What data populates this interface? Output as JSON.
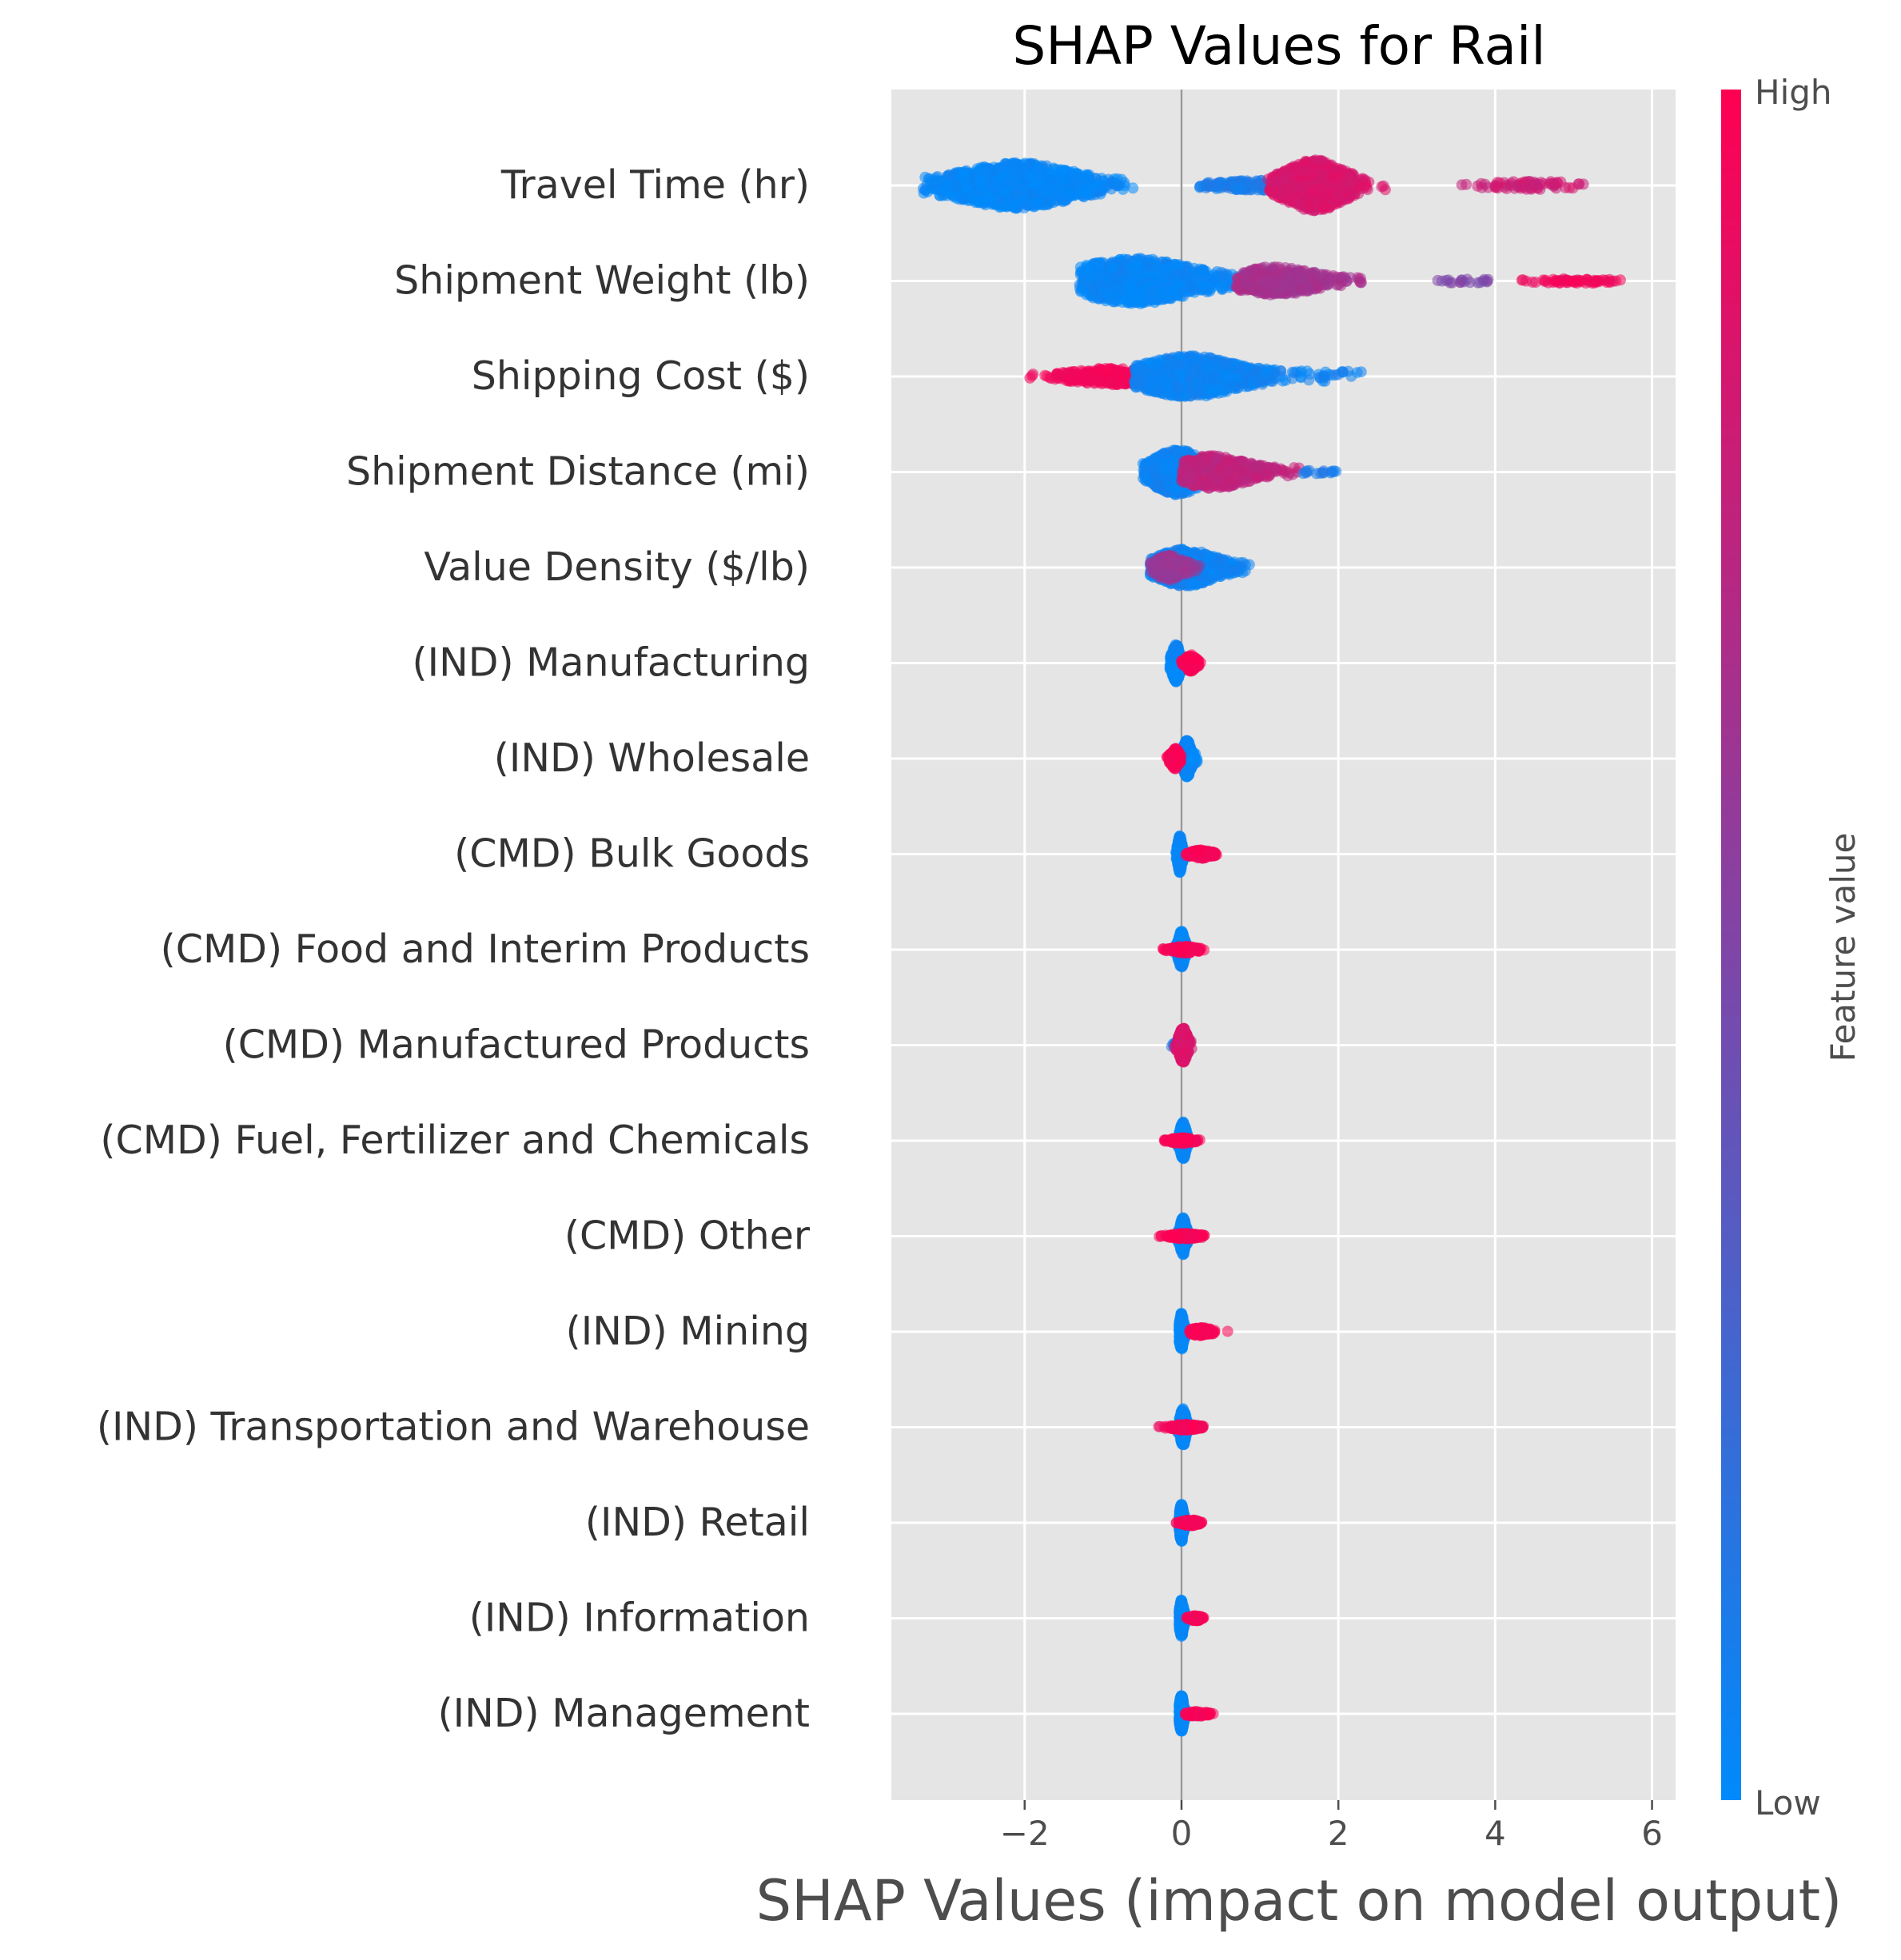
{
  "chart_data": {
    "type": "scatter",
    "subtype": "shap-beeswarm",
    "title": "SHAP Values for Rail",
    "xlabel": "SHAP Values (impact on model output)",
    "ylabel": "",
    "xlim": [
      -3.7,
      6.3
    ],
    "xticks": [
      -2,
      0,
      2,
      4,
      6
    ],
    "xtick_labels": [
      "−2",
      "0",
      "2",
      "4",
      "6"
    ],
    "grid": true,
    "background": "#e5e5e5",
    "colorbar": {
      "label": "Feature value",
      "high_label": "High",
      "low_label": "Low",
      "low_color": "#008afb",
      "high_color": "#ff0052"
    },
    "features": [
      {
        "name": "Travel Time (hr)",
        "segments": [
          {
            "min": -3.3,
            "max": -0.6,
            "center": -2.1,
            "spread": 0.6,
            "width": 0.55,
            "color": 0.02,
            "count": 900
          },
          {
            "min": 0.2,
            "max": 1.5,
            "center": 1.0,
            "spread": 0.5,
            "width": 0.12,
            "color": 0.1,
            "count": 150
          },
          {
            "min": 1.1,
            "max": 2.6,
            "center": 1.7,
            "spread": 0.3,
            "width": 0.62,
            "color": 0.85,
            "count": 700
          },
          {
            "min": 3.5,
            "max": 5.2,
            "center": 4.5,
            "spread": 0.5,
            "width": 0.1,
            "color": 0.8,
            "count": 70
          }
        ]
      },
      {
        "name": "Shipment Weight (lb)",
        "segments": [
          {
            "min": -1.3,
            "max": 1.2,
            "center": -0.6,
            "spread": 0.6,
            "width": 0.55,
            "color": 0.03,
            "count": 700
          },
          {
            "min": 0.7,
            "max": 2.4,
            "center": 1.2,
            "spread": 0.4,
            "width": 0.35,
            "color": 0.65,
            "count": 350
          },
          {
            "min": 3.2,
            "max": 4.0,
            "center": 3.6,
            "spread": 0.3,
            "width": 0.05,
            "color": 0.5,
            "count": 20
          },
          {
            "min": 4.3,
            "max": 5.7,
            "center": 5.0,
            "spread": 0.4,
            "width": 0.06,
            "color": 0.95,
            "count": 60
          }
        ]
      },
      {
        "name": "Shipping Cost ($)",
        "segments": [
          {
            "min": -2.0,
            "max": -0.4,
            "center": -0.9,
            "spread": 0.4,
            "width": 0.2,
            "color": 0.95,
            "count": 250
          },
          {
            "min": -0.6,
            "max": 2.3,
            "center": 0.1,
            "spread": 0.5,
            "width": 0.5,
            "color": 0.05,
            "count": 800
          }
        ]
      },
      {
        "name": "Shipment Distance (mi)",
        "segments": [
          {
            "min": -0.5,
            "max": 0.5,
            "center": -0.05,
            "spread": 0.25,
            "width": 0.55,
            "color": 0.05,
            "count": 600
          },
          {
            "min": 0.0,
            "max": 1.5,
            "center": 0.4,
            "spread": 0.35,
            "width": 0.4,
            "color": 0.75,
            "count": 450
          },
          {
            "min": 1.5,
            "max": 2.0,
            "center": 1.7,
            "spread": 0.2,
            "width": 0.05,
            "color": 0.1,
            "count": 15
          }
        ]
      },
      {
        "name": "Value Density ($/lb)",
        "segments": [
          {
            "min": -0.4,
            "max": 0.9,
            "center": 0.05,
            "spread": 0.3,
            "width": 0.45,
            "color": 0.05,
            "count": 600
          },
          {
            "min": -0.4,
            "max": 0.3,
            "center": -0.15,
            "spread": 0.15,
            "width": 0.3,
            "color": 0.6,
            "count": 200
          }
        ]
      },
      {
        "name": "(IND) Manufacturing",
        "segments": [
          {
            "min": -0.15,
            "max": 0.0,
            "center": -0.07,
            "spread": 0.04,
            "width": 0.45,
            "color": 0.02,
            "count": 350
          },
          {
            "min": 0.0,
            "max": 0.25,
            "center": 0.12,
            "spread": 0.05,
            "width": 0.2,
            "color": 0.97,
            "count": 200
          }
        ]
      },
      {
        "name": "(IND) Wholesale",
        "segments": [
          {
            "min": 0.0,
            "max": 0.2,
            "center": 0.07,
            "spread": 0.04,
            "width": 0.45,
            "color": 0.02,
            "count": 350
          },
          {
            "min": -0.2,
            "max": 0.0,
            "center": -0.08,
            "spread": 0.04,
            "width": 0.25,
            "color": 0.97,
            "count": 180
          }
        ]
      },
      {
        "name": "(CMD) Bulk Goods",
        "segments": [
          {
            "min": -0.1,
            "max": 0.05,
            "center": -0.02,
            "spread": 0.02,
            "width": 0.45,
            "color": 0.02,
            "count": 400
          },
          {
            "min": 0.05,
            "max": 0.45,
            "center": 0.25,
            "spread": 0.1,
            "width": 0.1,
            "color": 0.97,
            "count": 150
          }
        ]
      },
      {
        "name": "(CMD) Food and Interim Products",
        "segments": [
          {
            "min": -0.1,
            "max": 0.1,
            "center": 0.0,
            "spread": 0.03,
            "width": 0.45,
            "color": 0.02,
            "count": 400
          },
          {
            "min": -0.35,
            "max": 0.3,
            "center": 0.05,
            "spread": 0.12,
            "width": 0.08,
            "color": 0.97,
            "count": 150
          }
        ]
      },
      {
        "name": "(CMD) Manufactured Products",
        "segments": [
          {
            "min": -0.15,
            "max": 0.1,
            "center": -0.02,
            "spread": 0.04,
            "width": 0.12,
            "color": 0.1,
            "count": 150
          },
          {
            "min": -0.1,
            "max": 0.2,
            "center": 0.02,
            "spread": 0.04,
            "width": 0.42,
            "color": 0.85,
            "count": 350
          }
        ]
      },
      {
        "name": "(CMD) Fuel, Fertilizer and Chemicals",
        "segments": [
          {
            "min": -0.05,
            "max": 0.1,
            "center": 0.02,
            "spread": 0.03,
            "width": 0.45,
            "color": 0.02,
            "count": 400
          },
          {
            "min": -0.3,
            "max": 0.25,
            "center": 0.0,
            "spread": 0.1,
            "width": 0.07,
            "color": 0.97,
            "count": 150
          }
        ]
      },
      {
        "name": "(CMD) Other",
        "segments": [
          {
            "min": -0.05,
            "max": 0.1,
            "center": 0.02,
            "spread": 0.03,
            "width": 0.45,
            "color": 0.02,
            "count": 400
          },
          {
            "min": -0.3,
            "max": 0.3,
            "center": 0.05,
            "spread": 0.12,
            "width": 0.07,
            "color": 0.97,
            "count": 150
          }
        ]
      },
      {
        "name": "(IND) Mining",
        "segments": [
          {
            "min": -0.03,
            "max": 0.05,
            "center": 0.0,
            "spread": 0.02,
            "width": 0.45,
            "color": 0.02,
            "count": 400
          },
          {
            "min": 0.1,
            "max": 0.6,
            "center": 0.25,
            "spread": 0.1,
            "width": 0.1,
            "color": 0.97,
            "count": 120
          }
        ]
      },
      {
        "name": "(IND) Transportation and Warehouse",
        "segments": [
          {
            "min": -0.05,
            "max": 0.1,
            "center": 0.02,
            "spread": 0.03,
            "width": 0.45,
            "color": 0.02,
            "count": 400
          },
          {
            "min": -0.3,
            "max": 0.3,
            "center": 0.05,
            "spread": 0.12,
            "width": 0.07,
            "color": 0.97,
            "count": 150
          }
        ]
      },
      {
        "name": "(IND) Retail",
        "segments": [
          {
            "min": -0.03,
            "max": 0.05,
            "center": 0.0,
            "spread": 0.02,
            "width": 0.45,
            "color": 0.02,
            "count": 400
          },
          {
            "min": -0.15,
            "max": 0.3,
            "center": 0.12,
            "spread": 0.08,
            "width": 0.07,
            "color": 0.97,
            "count": 120
          }
        ]
      },
      {
        "name": "(IND) Information",
        "segments": [
          {
            "min": -0.03,
            "max": 0.05,
            "center": 0.0,
            "spread": 0.02,
            "width": 0.45,
            "color": 0.02,
            "count": 400
          },
          {
            "min": 0.05,
            "max": 0.3,
            "center": 0.18,
            "spread": 0.06,
            "width": 0.06,
            "color": 0.97,
            "count": 100
          }
        ]
      },
      {
        "name": "(IND) Management",
        "segments": [
          {
            "min": -0.03,
            "max": 0.05,
            "center": 0.0,
            "spread": 0.02,
            "width": 0.45,
            "color": 0.02,
            "count": 400
          },
          {
            "min": 0.05,
            "max": 0.45,
            "center": 0.2,
            "spread": 0.1,
            "width": 0.06,
            "color": 0.97,
            "count": 80
          }
        ]
      }
    ]
  }
}
